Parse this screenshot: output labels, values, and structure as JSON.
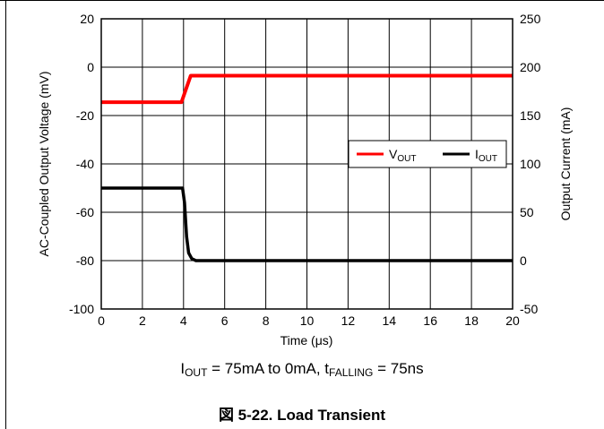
{
  "caption": {
    "iout_main": "I",
    "iout_sub": "OUT",
    "iout_rest": " = 75mA to 0mA, t",
    "tfall_sub": "FALLING",
    "tfall_rest": " = 75ns"
  },
  "figure_title": "図 5-22. Load Transient",
  "chart_data": {
    "type": "line",
    "xlabel": "Time (μs)",
    "ylabel": "AC-Coupled Output Voltage (mV)",
    "y2label": "Output Current (mA)",
    "xlim": [
      0,
      20
    ],
    "ylim": [
      -100,
      20
    ],
    "y2lim": [
      -50,
      250
    ],
    "xticks": [
      0,
      2,
      4,
      6,
      8,
      10,
      12,
      14,
      16,
      18,
      20
    ],
    "yticks": [
      20,
      0,
      -20,
      -40,
      -60,
      -80,
      -100
    ],
    "y2ticks": [
      250,
      200,
      150,
      100,
      50,
      0,
      -50
    ],
    "grid": true,
    "legend_position": "right",
    "series": [
      {
        "name_main": "V",
        "name_sub": "OUT",
        "axis": "left",
        "color": "#ff0000",
        "x": [
          0,
          3.9,
          4.35,
          20
        ],
        "y": [
          -14.5,
          -14.5,
          -3.5,
          -3.5
        ]
      },
      {
        "name_main": "I",
        "name_sub": "OUT",
        "axis": "right",
        "color": "#000000",
        "x": [
          0,
          3.95,
          4.05,
          4.15,
          4.25,
          4.4,
          4.6,
          20
        ],
        "y": [
          75,
          75,
          60,
          25,
          8,
          2,
          0,
          0
        ]
      }
    ]
  }
}
